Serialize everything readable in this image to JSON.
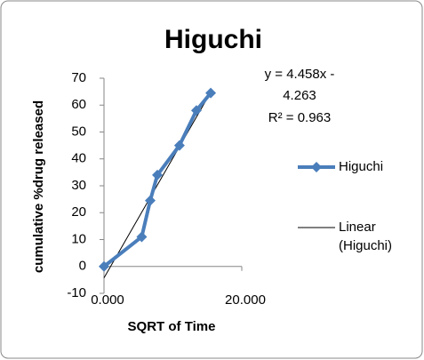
{
  "chart_data": {
    "type": "line",
    "title": "Higuchi",
    "x_label": "SQRT of Time",
    "y_label": "cumulative %drug released",
    "x": [
      0,
      5.477,
      6.708,
      7.746,
      10.954,
      13.416,
      15.492
    ],
    "series": [
      {
        "name": "Higuchi",
        "color": "#4a7ebb",
        "values": [
          0,
          11,
          24.5,
          34,
          45,
          58,
          64.5
        ]
      }
    ],
    "trendline": {
      "name": "Linear (Higuchi)",
      "slope": 4.458,
      "intercept": -4.263,
      "color": "#000000"
    },
    "equation_lines": [
      "y = 4.458x -",
      "4.263"
    ],
    "r_squared": "R² = 0.963",
    "xlim": [
      0,
      20
    ],
    "xticks": [
      {
        "value": 0,
        "label": "0.000"
      },
      {
        "value": 20,
        "label": "20.000"
      }
    ],
    "ylim": [
      -10,
      70
    ],
    "yticks": [
      -10,
      0,
      10,
      20,
      30,
      40,
      50,
      60,
      70
    ],
    "legend": "right"
  }
}
